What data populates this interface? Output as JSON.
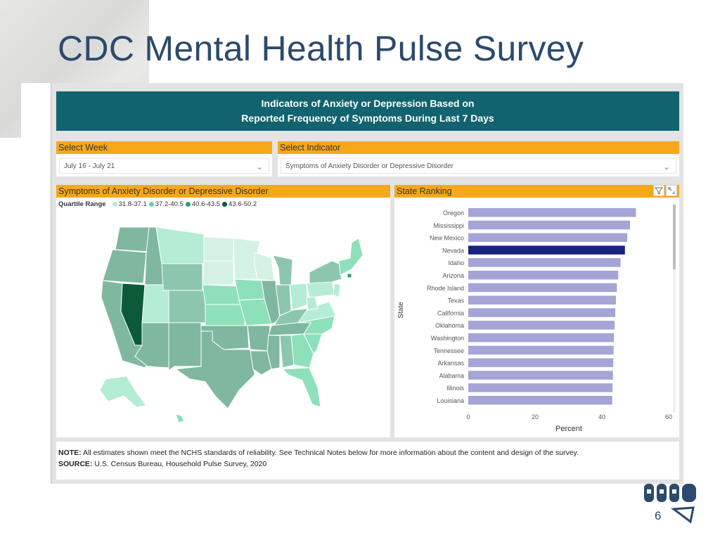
{
  "slide": {
    "title": "CDC Mental Health Pulse Survey",
    "page_number": "6"
  },
  "dashboard": {
    "banner_line1": "Indicators of Anxiety or Depression Based on",
    "banner_line2": "Reported Frequency of Symptoms During Last 7 Days",
    "week_filter": {
      "label": "Select Week",
      "value": "July 16 - July 21"
    },
    "indicator_filter": {
      "label": "Select Indicator",
      "value": "Symptoms of Anxiety Disorder or Depressive Disorder"
    },
    "map_panel": {
      "title": "Symptoms of Anxiety Disorder or Depressive Disorder",
      "legend_title": "Quartile Range",
      "legend": [
        {
          "label": "31.8-37.1",
          "color": "#b4ecd4"
        },
        {
          "label": "37.2-40.5",
          "color": "#5fd6a4"
        },
        {
          "label": "40.6-43.5",
          "color": "#2aa472"
        },
        {
          "label": "43.6-50.2",
          "color": "#0b5a38"
        }
      ]
    },
    "ranking_panel": {
      "title": "State Ranking"
    },
    "notes": {
      "note_label": "NOTE:",
      "note_text": " All estimates shown meet the NCHS standards of reliability. See Technical Notes below for more information about the content and design of the survey.",
      "source_label": "SOURCE:",
      "source_text": " U.S. Census Bureau, Household Pulse Survey, 2020"
    }
  },
  "chart_data": {
    "type": "bar",
    "orientation": "horizontal",
    "title": "State Ranking",
    "xlabel": "Percent",
    "ylabel": "State",
    "xlim": [
      0,
      60
    ],
    "xticks": [
      0,
      20,
      40,
      60
    ],
    "categories": [
      "Oregon",
      "Mississippi",
      "New Mexico",
      "Nevada",
      "Idaho",
      "Arizona",
      "Rhode Island",
      "Texas",
      "California",
      "Oklahoma",
      "Washington",
      "Tennessee",
      "Arkansas",
      "Alabama",
      "Illinois",
      "Louisiana"
    ],
    "values": [
      50.2,
      48.4,
      47.6,
      46.9,
      45.6,
      44.9,
      44.5,
      44.2,
      44.0,
      43.8,
      43.6,
      43.5,
      43.4,
      43.3,
      43.2,
      43.1
    ],
    "highlighted": "Nevada",
    "bar_color": "#a4a4d6",
    "highlight_color": "#1a237e",
    "grid": false
  }
}
